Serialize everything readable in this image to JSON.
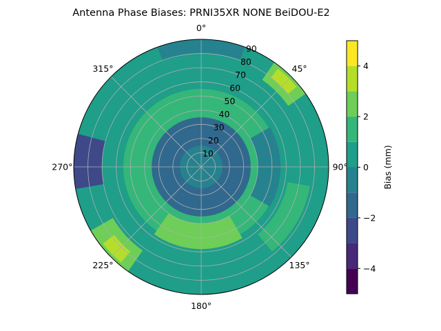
{
  "chart_data": {
    "type": "polar-contour",
    "title": "Antenna Phase Biases: PRNI35XR        NONE BeiDOU-E2",
    "angle_labels": [
      "0°",
      "45°",
      "90°",
      "135°",
      "180°",
      "225°",
      "270°",
      "315°"
    ],
    "radial_ticks": [
      10,
      20,
      30,
      40,
      50,
      60,
      70,
      80,
      90
    ],
    "radial_tick_labels": [
      "10",
      "20",
      "30",
      "40",
      "50",
      "60",
      "70",
      "80",
      "90"
    ],
    "radial_range": [
      0,
      90
    ],
    "angular_direction": "clockwise",
    "zero_location": "top",
    "grid": true,
    "colorbar": {
      "label": "Bias (mm)",
      "range": [
        -5,
        5
      ],
      "levels": [
        -5,
        -4,
        -3,
        -2,
        -1,
        0,
        1,
        2,
        3,
        4,
        5
      ],
      "tick_values": [
        -4,
        -2,
        0,
        2,
        4
      ],
      "tick_labels": [
        "−4",
        "−2",
        "0",
        "2",
        "4"
      ],
      "colors": [
        "#440154",
        "#482878",
        "#3e4989",
        "#31688e",
        "#26828e",
        "#1f9e89",
        "#35b779",
        "#6ece58",
        "#b5de2b",
        "#fde725"
      ]
    },
    "bias_rings": [
      {
        "elevation_range": [
          0,
          15
        ],
        "bias": -0.5
      },
      {
        "elevation_range": [
          15,
          35
        ],
        "bias": -1.5
      },
      {
        "elevation_range": [
          35,
          55
        ],
        "bias": 1.5
      },
      {
        "elevation_range": [
          55,
          70
        ],
        "bias": 0.5
      },
      {
        "elevation_range": [
          70,
          80
        ],
        "bias": 0.5
      },
      {
        "elevation_range": [
          80,
          90
        ],
        "bias": 0.5
      }
    ],
    "bias_features": [
      {
        "azimuth_range": [
          35,
          55
        ],
        "elevation_range": [
          75,
          90
        ],
        "bias": 2.5
      },
      {
        "azimuth_range": [
          38,
          50
        ],
        "elevation_range": [
          80,
          88
        ],
        "bias": 3.5
      },
      {
        "azimuth_range": [
          215,
          240
        ],
        "elevation_range": [
          72,
          90
        ],
        "bias": 2.5
      },
      {
        "azimuth_range": [
          220,
          232
        ],
        "elevation_range": [
          78,
          88
        ],
        "bias": 3.5
      },
      {
        "azimuth_range": [
          260,
          285
        ],
        "elevation_range": [
          70,
          90
        ],
        "bias": -2.5
      },
      {
        "azimuth_range": [
          150,
          215
        ],
        "elevation_range": [
          40,
          58
        ],
        "bias": 2.5
      },
      {
        "azimuth_range": [
          60,
          120
        ],
        "elevation_range": [
          40,
          56
        ],
        "bias": -0.5
      },
      {
        "azimuth_range": [
          340,
          20
        ],
        "elevation_range": [
          80,
          90
        ],
        "bias": -0.5
      },
      {
        "azimuth_range": [
          100,
          140
        ],
        "elevation_range": [
          62,
          78
        ],
        "bias": 1.5
      }
    ]
  }
}
